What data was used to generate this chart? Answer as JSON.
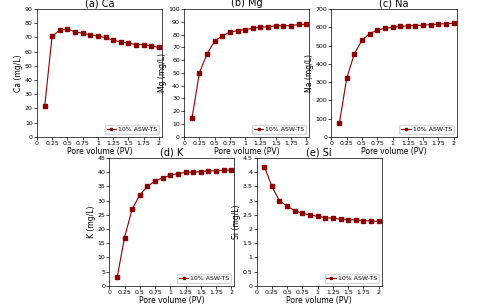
{
  "pv": [
    0.13,
    0.25,
    0.375,
    0.5,
    0.625,
    0.75,
    0.875,
    1.0,
    1.125,
    1.25,
    1.375,
    1.5,
    1.625,
    1.75,
    1.875,
    2.0
  ],
  "Ca": [
    22,
    71,
    75,
    76,
    74,
    73,
    72,
    71,
    70,
    68,
    67,
    66,
    65,
    65,
    64,
    63
  ],
  "Mg": [
    15,
    50,
    65,
    75,
    79,
    82,
    83,
    84,
    85,
    86,
    86,
    87,
    87,
    87,
    88,
    88
  ],
  "Na": [
    75,
    320,
    455,
    530,
    565,
    585,
    595,
    600,
    605,
    608,
    610,
    612,
    615,
    618,
    620,
    623
  ],
  "K": [
    3,
    17,
    27,
    32,
    35,
    37,
    38,
    39,
    39.5,
    40,
    40,
    40.2,
    40.5,
    40.5,
    40.7,
    40.8
  ],
  "Si": [
    4.2,
    3.5,
    3.0,
    2.8,
    2.65,
    2.55,
    2.5,
    2.45,
    2.4,
    2.38,
    2.35,
    2.33,
    2.32,
    2.3,
    2.28,
    2.27
  ],
  "Ca_ylim": [
    0,
    90
  ],
  "Mg_ylim": [
    0,
    100
  ],
  "Na_ylim": [
    0,
    700
  ],
  "K_ylim": [
    0,
    45
  ],
  "Si_ylim": [
    0,
    4.5
  ],
  "Ca_yticks": [
    0,
    10,
    20,
    30,
    40,
    50,
    60,
    70,
    80,
    90
  ],
  "Mg_yticks": [
    0,
    10,
    20,
    30,
    40,
    50,
    60,
    70,
    80,
    90,
    100
  ],
  "Na_yticks": [
    0,
    100,
    200,
    300,
    400,
    500,
    600,
    700
  ],
  "K_yticks": [
    0,
    5,
    10,
    15,
    20,
    25,
    30,
    35,
    40,
    45
  ],
  "Si_yticks": [
    0,
    0.5,
    1.0,
    1.5,
    2.0,
    2.5,
    3.0,
    3.5,
    4.0,
    4.5
  ],
  "xticks": [
    0,
    0.25,
    0.5,
    0.75,
    1,
    1.25,
    1.5,
    1.75,
    2
  ],
  "xlabel": "Pore volume (PV)",
  "Ca_ylabel": "Ca (mg/L)",
  "Mg_ylabel": "Mg (mg/L)",
  "Na_ylabel": "Na (mg/L)",
  "K_ylabel": "K (mg/L)",
  "Si_ylabel": "Si (mg/L)",
  "legend_label": "10% ASW-TS",
  "titles": [
    "(a) Ca",
    "(b) Mg",
    "(c) Na",
    "(d) K",
    "(e) Si"
  ],
  "line_color": "#8B0000",
  "marker": "s",
  "markersize": 2.5,
  "linewidth": 0.8
}
